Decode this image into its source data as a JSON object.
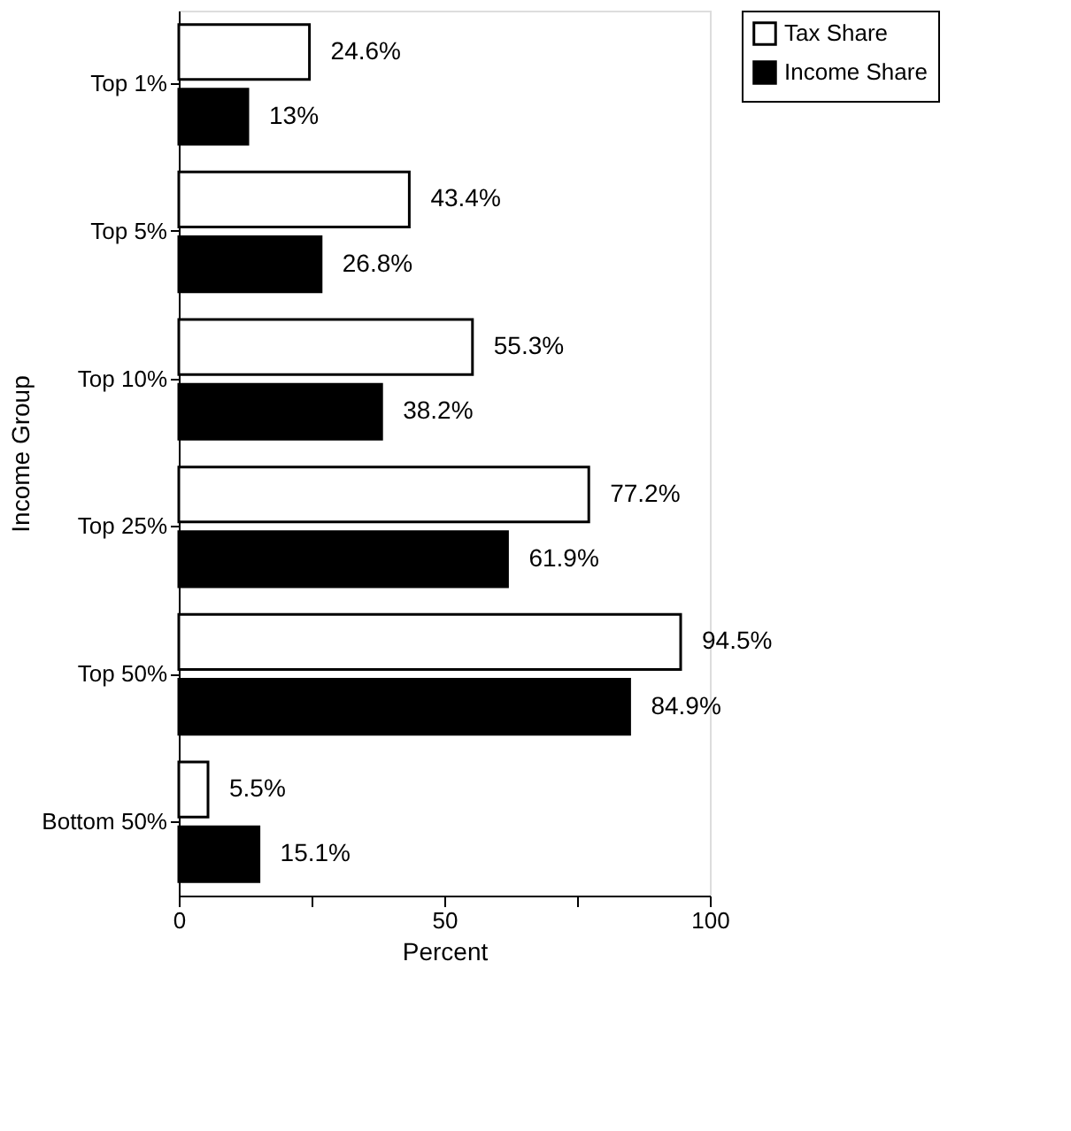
{
  "chart_data": {
    "type": "bar",
    "orientation": "horizontal",
    "xlabel": "Percent",
    "ylabel": "Income Group",
    "categories": [
      "Top 1%",
      "Top 5%",
      "Top 10%",
      "Top 25%",
      "Top 50%",
      "Bottom 50%"
    ],
    "series": [
      {
        "name": "Tax Share",
        "color": "#ffffff",
        "values": [
          24.6,
          43.4,
          55.3,
          77.2,
          94.5,
          5.5
        ],
        "value_labels": [
          "24.6%",
          "43.4%",
          "55.3%",
          "77.2%",
          "94.5%",
          "5.5%"
        ]
      },
      {
        "name": "Income Share",
        "color": "#000000",
        "values": [
          13,
          26.8,
          38.2,
          61.9,
          84.9,
          15.1
        ],
        "value_labels": [
          "13%",
          "26.8%",
          "38.2%",
          "61.9%",
          "84.9%",
          "15.1%"
        ]
      }
    ],
    "xlim": [
      0,
      100
    ],
    "xticks": [
      0,
      {
        "value": 25,
        "label": null
      },
      50,
      {
        "value": 75,
        "label": null
      },
      100
    ],
    "grid": false,
    "legend": "right"
  }
}
